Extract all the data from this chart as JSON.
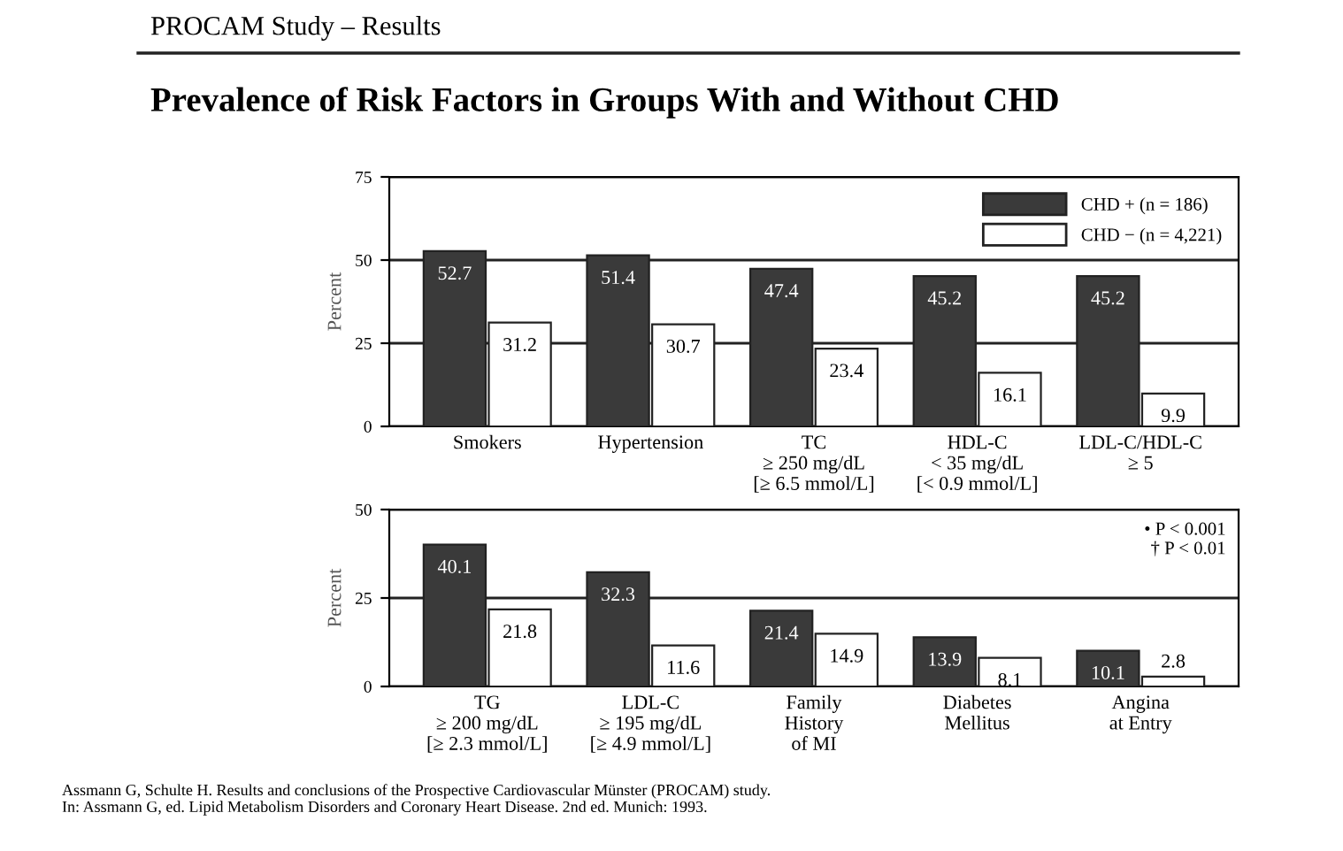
{
  "chart_data": [
    {
      "type": "bar",
      "subtitle": "PROCAM Study – Results",
      "title": "Prevalence of Risk Factors in Groups With and Without CHD",
      "ylabel": "Percent",
      "categories": [
        "Smokers",
        "Hypertension",
        "TC\n≥ 250 mg/dL\n[≥ 6.5 mmol/L]",
        "HDL-C\n< 35 mg/dL\n[< 0.9 mmol/L]",
        "LDL-C/HDL-C\n≥ 5"
      ],
      "series": [
        {
          "name": "CHD + (n = 186)",
          "color": "#3a3a3a",
          "values": [
            52.7,
            51.4,
            47.4,
            45.2,
            45.2
          ]
        },
        {
          "name": "CHD − (n = 4,221)",
          "color": "#ffffff",
          "values": [
            31.2,
            30.7,
            23.4,
            16.1,
            9.9
          ]
        }
      ],
      "ylim": [
        0,
        75
      ],
      "yticks": [
        0,
        25,
        50,
        75
      ],
      "grid": "y",
      "legend": "top right",
      "data_labels": true
    },
    {
      "type": "bar",
      "ylabel": "Percent",
      "categories": [
        "TG\n≥ 200 mg/dL\n[≥ 2.3 mmol/L]",
        "LDL-C\n≥ 195 mg/dL\n[≥ 4.9 mmol/L]",
        "Family\nHistory\nof MI",
        "Diabetes\nMellitus",
        "Angina\nat Entry"
      ],
      "series": [
        {
          "color": "#3a3a3a",
          "values": [
            40.1,
            32.3,
            21.4,
            13.9,
            10.1
          ]
        },
        {
          "color": "#ffffff",
          "values": [
            21.8,
            11.6,
            14.9,
            8.1,
            2.8
          ]
        }
      ],
      "ylim": [
        0,
        50
      ],
      "yticks": [
        0,
        25,
        50
      ],
      "grid": "y",
      "data_labels": true,
      "annotations": [
        "• P < 0.001\n† P < 0.01",
        "Assmann G, Schulte H. Results and conclusions of the Prospective Cardiovascular Münster (PROCAM) study.\nIn: Assmann G, ed. Lipid Metabolism Disorders and Coronary Heart Disease. 2nd ed. Munich: 1993."
      ]
    }
  ]
}
